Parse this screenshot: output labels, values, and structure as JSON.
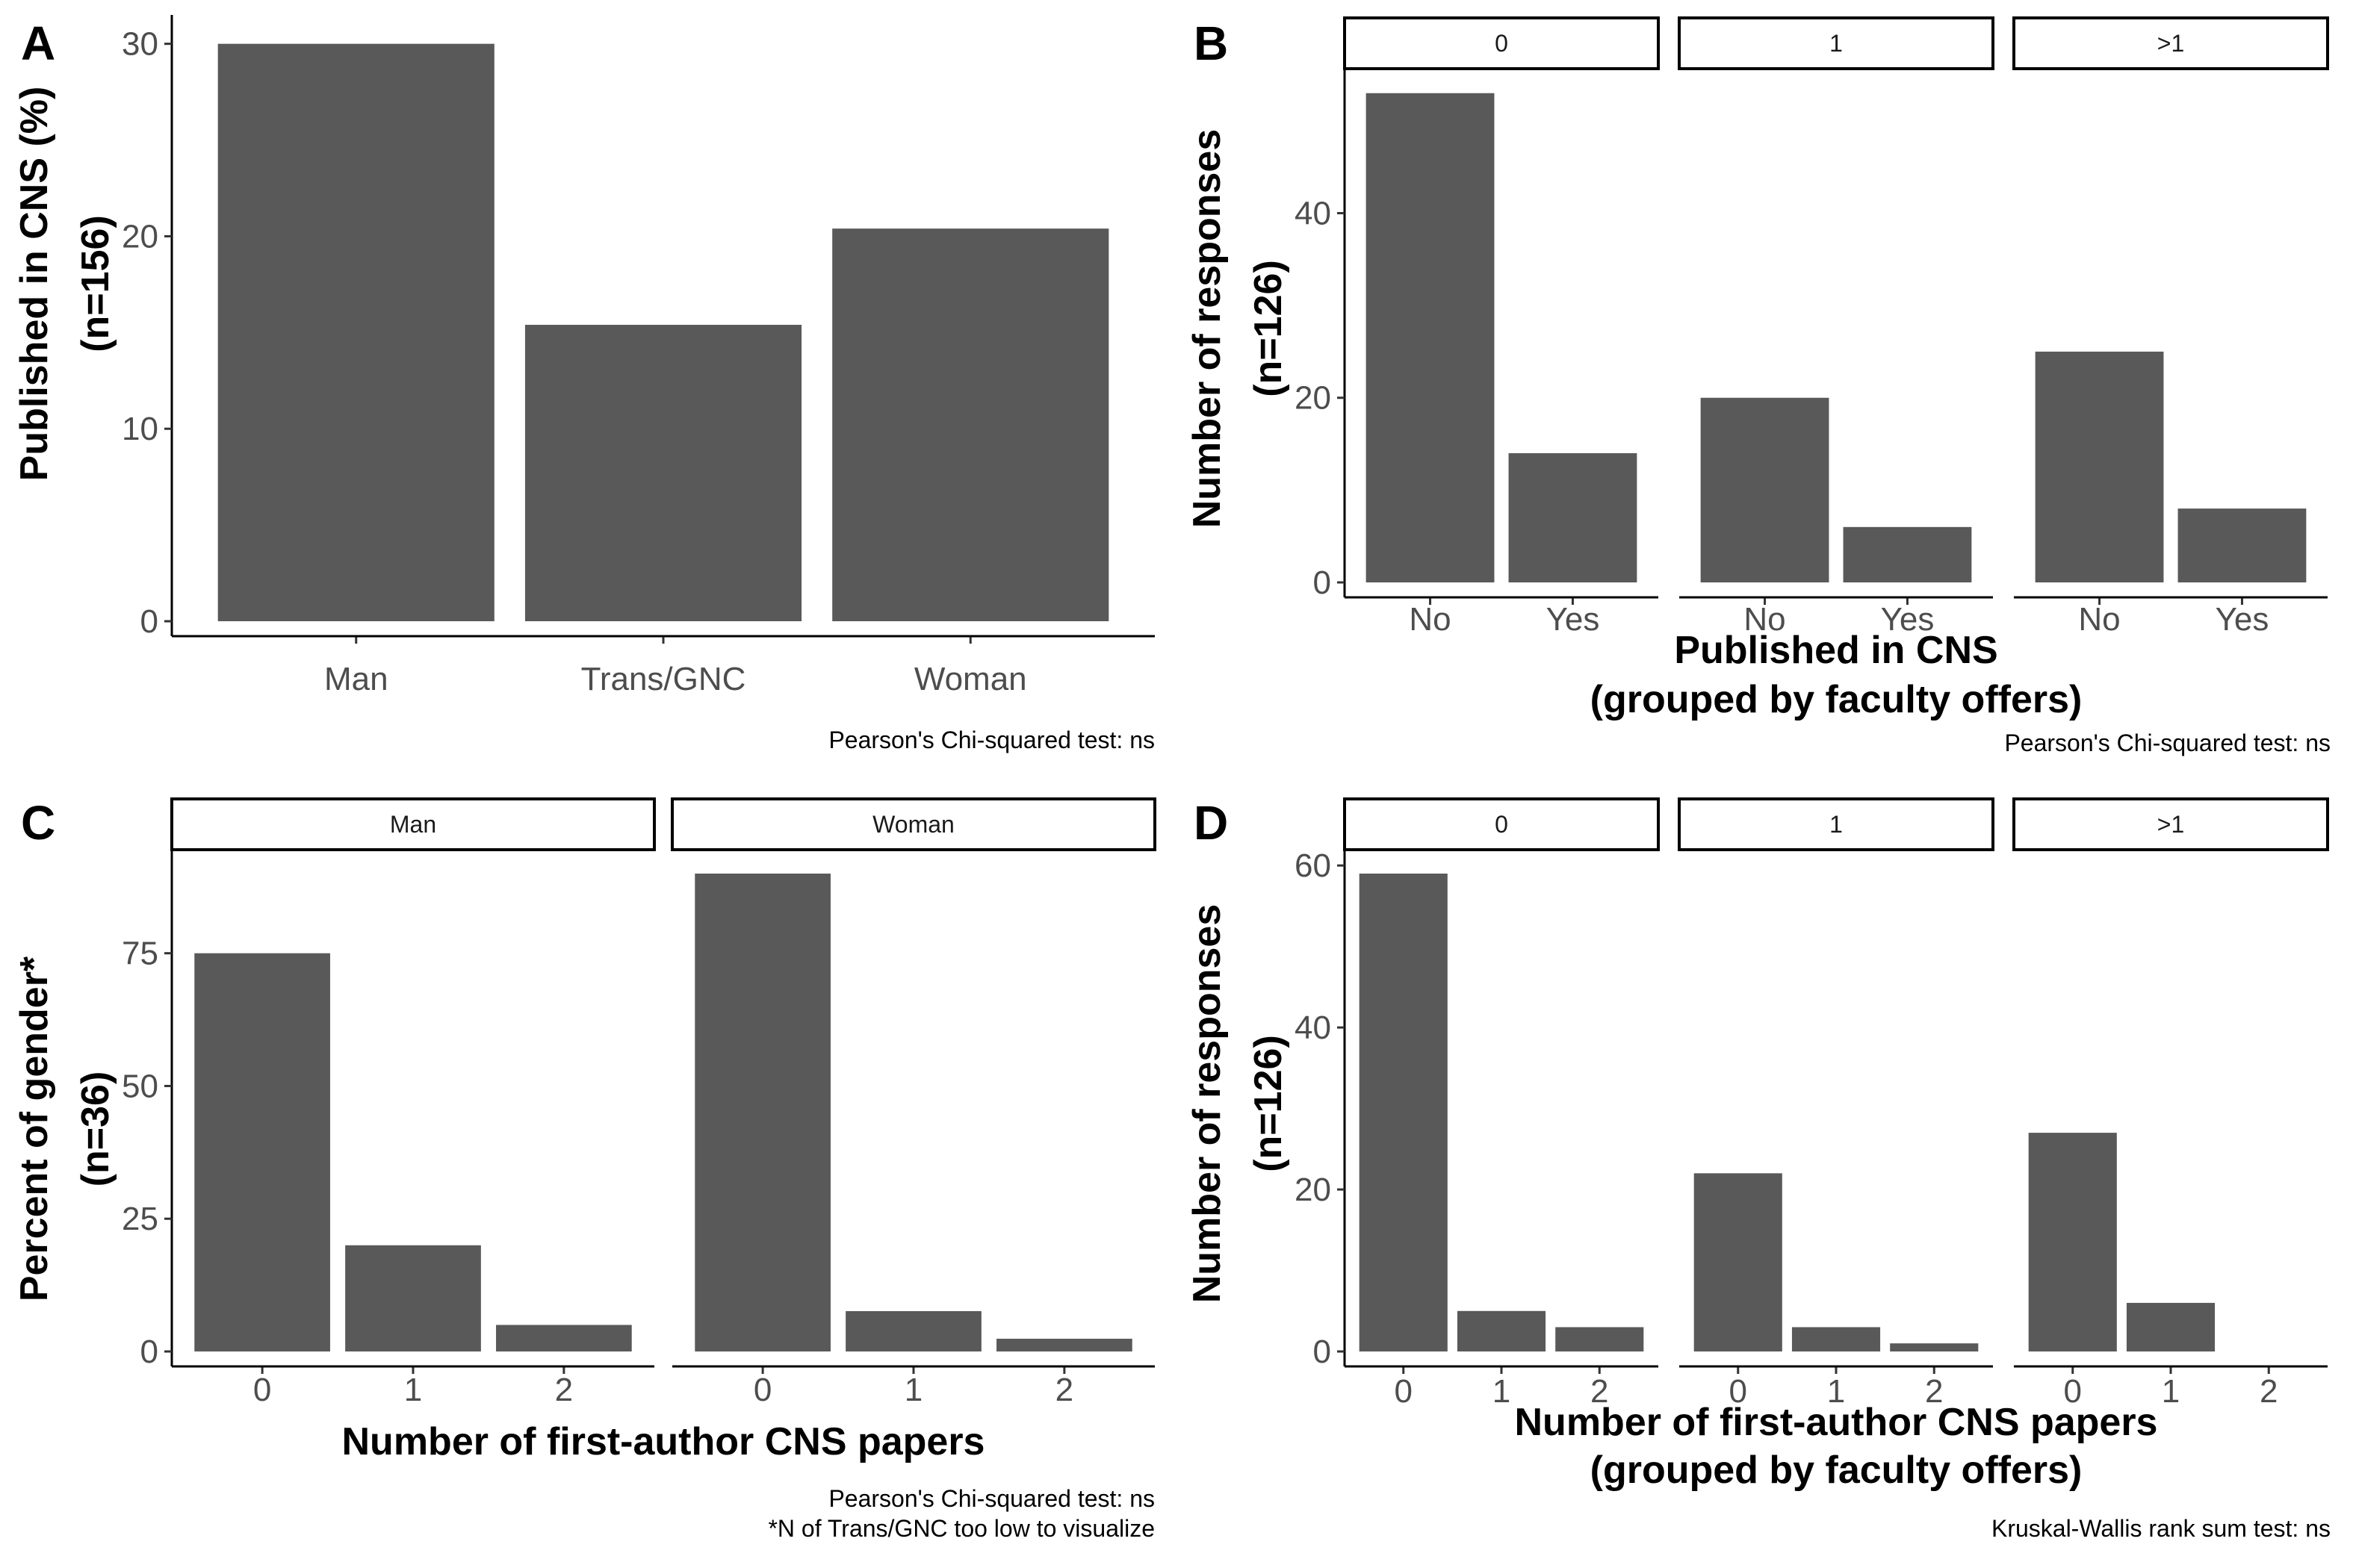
{
  "chart_data": [
    {
      "panel": "A",
      "type": "bar",
      "categories": [
        "Man",
        "Trans/GNC",
        "Woman"
      ],
      "values": [
        30,
        15.4,
        20.4
      ],
      "ylabel": [
        "Published in CNS (%)",
        "(n=156)"
      ],
      "xlabel": [],
      "yticks": [
        0,
        10,
        20,
        30
      ],
      "ylim": [
        0,
        31.5
      ],
      "caption": [
        "Pearson's Chi-squared test: ns"
      ]
    },
    {
      "panel": "B",
      "type": "bar",
      "facets": [
        {
          "label": "0",
          "categories": [
            "No",
            "Yes"
          ],
          "values": [
            53,
            14
          ]
        },
        {
          "label": "1",
          "categories": [
            "No",
            "Yes"
          ],
          "values": [
            20,
            6
          ]
        },
        {
          "label": ">1",
          "categories": [
            "No",
            "Yes"
          ],
          "values": [
            25,
            8
          ]
        }
      ],
      "ylabel": [
        "Number of responses",
        "(n=126)"
      ],
      "xlabel": [
        "Published in CNS",
        "(grouped by faculty offers)"
      ],
      "yticks": [
        0,
        20,
        40
      ],
      "ylim": [
        0,
        55.65
      ],
      "caption": [
        "Pearson's Chi-squared test: ns"
      ]
    },
    {
      "panel": "C",
      "type": "bar",
      "facets": [
        {
          "label": "Man",
          "categories": [
            "0",
            "1",
            "2"
          ],
          "values": [
            75,
            20,
            5
          ]
        },
        {
          "label": "Woman",
          "categories": [
            "0",
            "1",
            "2"
          ],
          "values": [
            90,
            7.6,
            2.4
          ]
        }
      ],
      "ylabel": [
        "Percent of gender*",
        "(n=36)"
      ],
      "xlabel": [
        "Number of first-author CNS papers"
      ],
      "yticks": [
        0,
        25,
        50,
        75
      ],
      "ylim": [
        0,
        94.5
      ],
      "caption": [
        "Pearson's Chi-squared test: ns",
        "*N of Trans/GNC too low to visualize"
      ]
    },
    {
      "panel": "D",
      "type": "bar",
      "facets": [
        {
          "label": "0",
          "categories": [
            "0",
            "1",
            "2"
          ],
          "values": [
            59,
            5,
            3
          ]
        },
        {
          "label": "1",
          "categories": [
            "0",
            "1",
            "2"
          ],
          "values": [
            22,
            3,
            1
          ]
        },
        {
          "label": ">1",
          "categories": [
            "0",
            "1",
            "2"
          ],
          "values": [
            27,
            6,
            0
          ]
        }
      ],
      "ylabel": [
        "Number of responses",
        "(n=126)"
      ],
      "xlabel": [
        "Number of first-author CNS papers",
        "(grouped by faculty offers)"
      ],
      "yticks": [
        0,
        20,
        40,
        60
      ],
      "ylim": [
        0,
        61.95
      ],
      "caption": [
        "Kruskal-Wallis rank sum test: ns"
      ]
    }
  ]
}
